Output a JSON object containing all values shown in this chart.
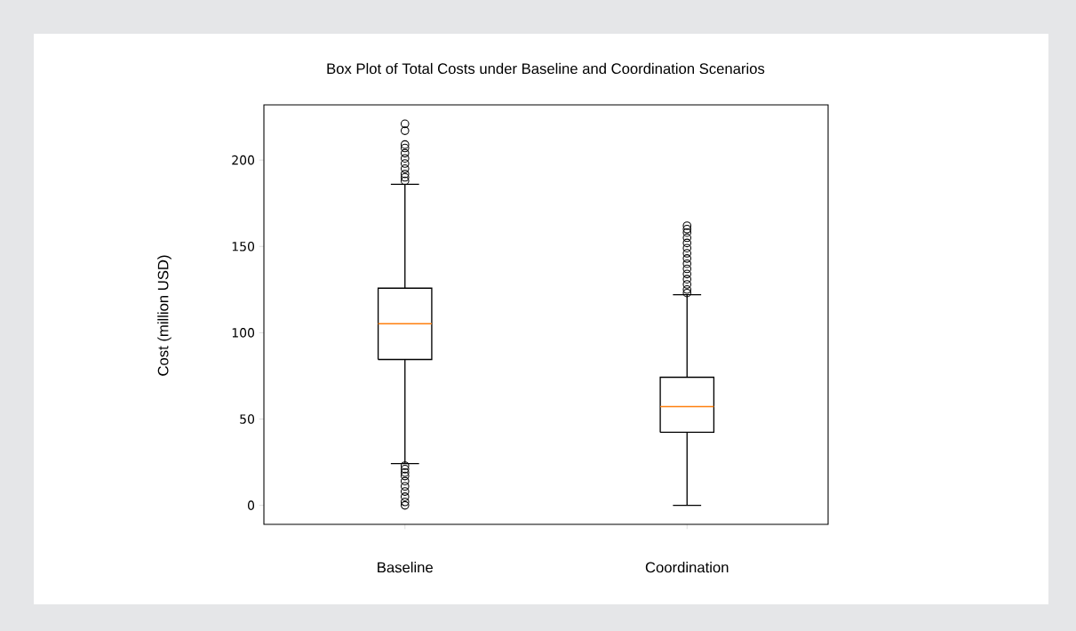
{
  "chart_data": {
    "type": "box",
    "title": "Box Plot of Total Costs under Baseline and Coordination Scenarios",
    "ylabel": "Cost (million USD)",
    "categories": [
      "Baseline",
      "Coordination"
    ],
    "boxes": [
      {
        "low": 24.2,
        "q1": 84.5,
        "median": 105.2,
        "q3": 125.8,
        "high": 186,
        "outliers": [
          0,
          2,
          5,
          8,
          11,
          14,
          17,
          19,
          21,
          23,
          188,
          190,
          192,
          195,
          198,
          201,
          204,
          207,
          209,
          217,
          221
        ]
      },
      {
        "low": 0,
        "q1": 42.3,
        "median": 57.2,
        "q3": 74.2,
        "high": 122,
        "outliers": [
          123,
          125,
          128,
          131,
          134,
          137,
          140,
          143,
          146,
          149,
          152,
          155,
          158,
          160,
          162
        ]
      }
    ],
    "color": "#000000",
    "marker": "circle",
    "ylim": [
      -11,
      232
    ],
    "yticks": [
      0,
      50,
      100,
      150,
      200
    ]
  }
}
